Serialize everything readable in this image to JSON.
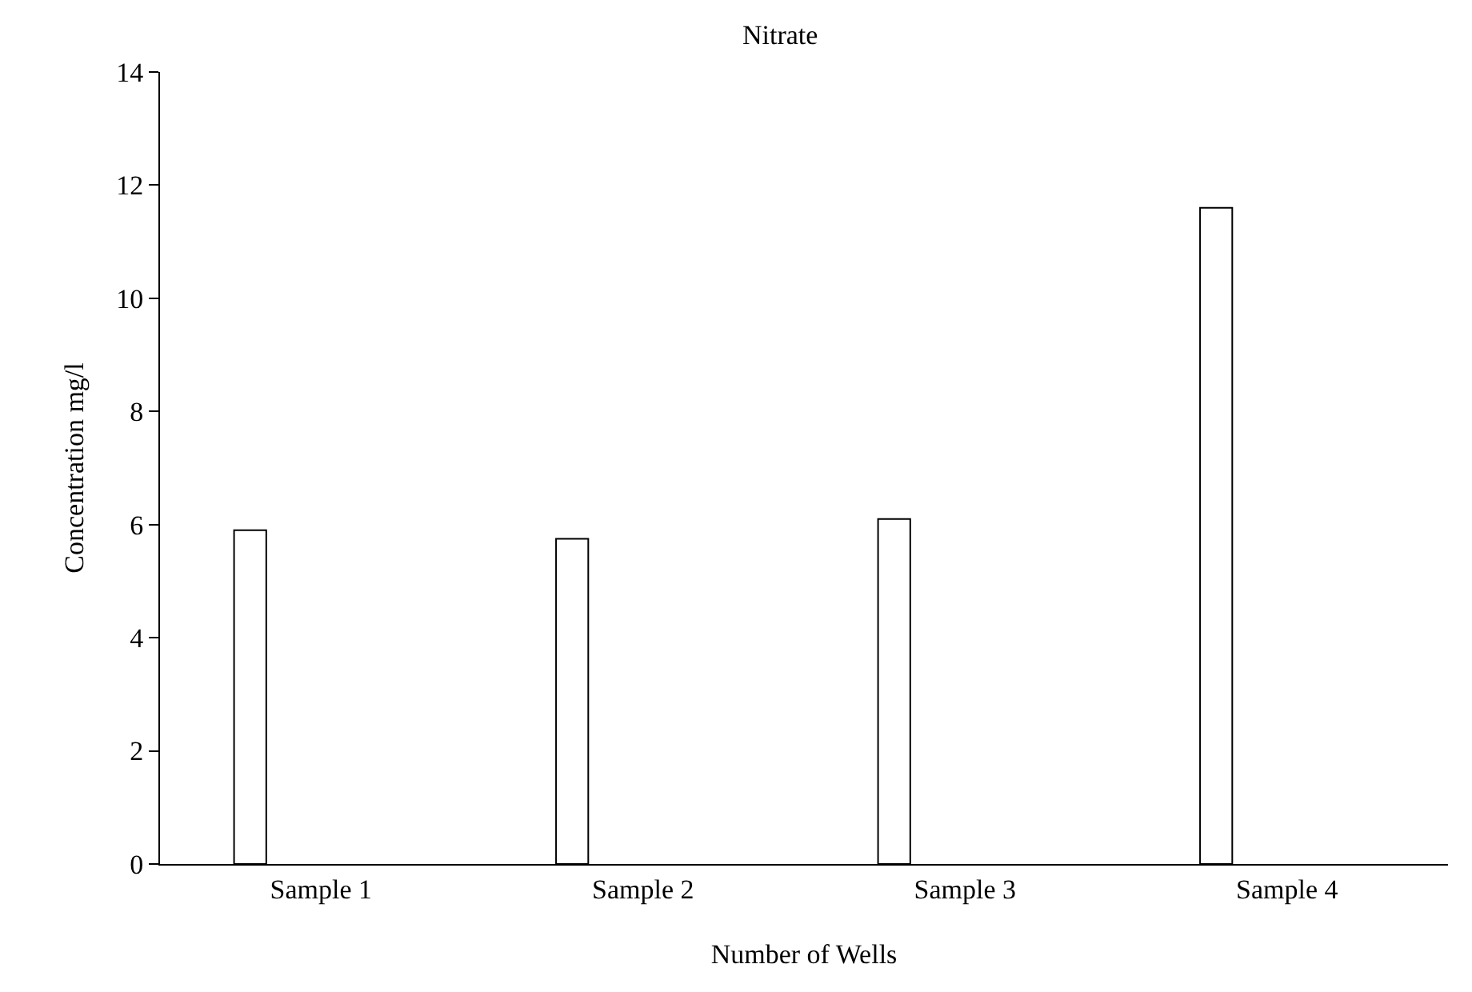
{
  "chart_data": {
    "type": "bar",
    "title": "Nitrate",
    "xlabel": "Number of Wells",
    "ylabel": "Concentration mg/l",
    "categories": [
      "Sample 1",
      "Sample 2",
      "Sample 3",
      "Sample 4"
    ],
    "values": [
      5.9,
      5.75,
      6.1,
      11.6
    ],
    "color": "#ffffff",
    "ylim": [
      0,
      14
    ],
    "yticks": [
      0,
      2,
      4,
      6,
      8,
      10,
      12,
      14
    ],
    "grid": false
  }
}
